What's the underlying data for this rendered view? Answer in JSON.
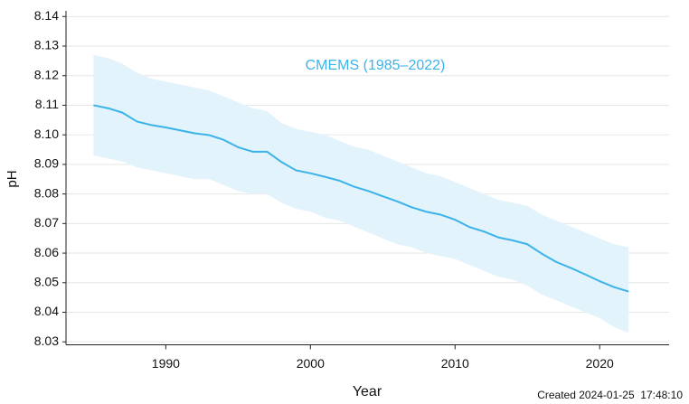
{
  "chart_data": {
    "type": "line",
    "x_label": "Year",
    "y_label": "pH",
    "annotation": "CMEMS (1985–2022)",
    "footer": "Created 2024-01-25  17:48:10",
    "x": [
      1985,
      1986,
      1987,
      1988,
      1989,
      1990,
      1991,
      1992,
      1993,
      1994,
      1995,
      1996,
      1997,
      1998,
      1999,
      2000,
      2001,
      2002,
      2003,
      2004,
      2005,
      2006,
      2007,
      2008,
      2009,
      2010,
      2011,
      2012,
      2013,
      2014,
      2015,
      2016,
      2017,
      2018,
      2019,
      2020,
      2021,
      2022
    ],
    "series": [
      {
        "color": "#3bb3ea",
        "band_color": "#e2f3fc",
        "values": [
          8.11,
          8.109,
          8.1075,
          8.1045,
          8.1033,
          8.1025,
          8.1015,
          8.1005,
          8.0999,
          8.0983,
          8.0958,
          8.0943,
          8.0943,
          8.0908,
          8.088,
          8.087,
          8.0858,
          8.0845,
          8.0825,
          8.081,
          8.0792,
          8.0775,
          8.0755,
          8.074,
          8.073,
          8.0713,
          8.0688,
          8.0673,
          8.0653,
          8.0643,
          8.063,
          8.0598,
          8.057,
          8.055,
          8.0528,
          8.0505,
          8.0485,
          8.047
        ],
        "upper": [
          8.127,
          8.126,
          8.124,
          8.121,
          8.119,
          8.118,
          8.117,
          8.116,
          8.115,
          8.113,
          8.111,
          8.109,
          8.108,
          8.104,
          8.102,
          8.101,
          8.1,
          8.098,
          8.096,
          8.095,
          8.093,
          8.091,
          8.089,
          8.087,
          8.086,
          8.084,
          8.082,
          8.08,
          8.078,
          8.077,
          8.076,
          8.073,
          8.071,
          8.069,
          8.067,
          8.065,
          8.063,
          8.062
        ],
        "lower": [
          8.093,
          8.092,
          8.091,
          8.089,
          8.088,
          8.087,
          8.086,
          8.085,
          8.085,
          8.083,
          8.081,
          8.08,
          8.08,
          8.077,
          8.075,
          8.074,
          8.072,
          8.071,
          8.069,
          8.067,
          8.065,
          8.063,
          8.062,
          8.06,
          8.059,
          8.058,
          8.056,
          8.054,
          8.052,
          8.051,
          8.049,
          8.046,
          8.044,
          8.042,
          8.04,
          8.038,
          8.035,
          8.033
        ]
      }
    ],
    "xlim": [
      1983.1,
      2024.8
    ],
    "xticks": [
      1990,
      2000,
      2010,
      2020
    ],
    "ylim": [
      8.029,
      8.141
    ],
    "yticks": [
      8.03,
      8.04,
      8.05,
      8.06,
      8.07,
      8.08,
      8.09,
      {
        "value": 8.1,
        "label": "8.10"
      },
      8.11,
      8.12,
      8.13,
      8.14
    ],
    "grid": true
  }
}
